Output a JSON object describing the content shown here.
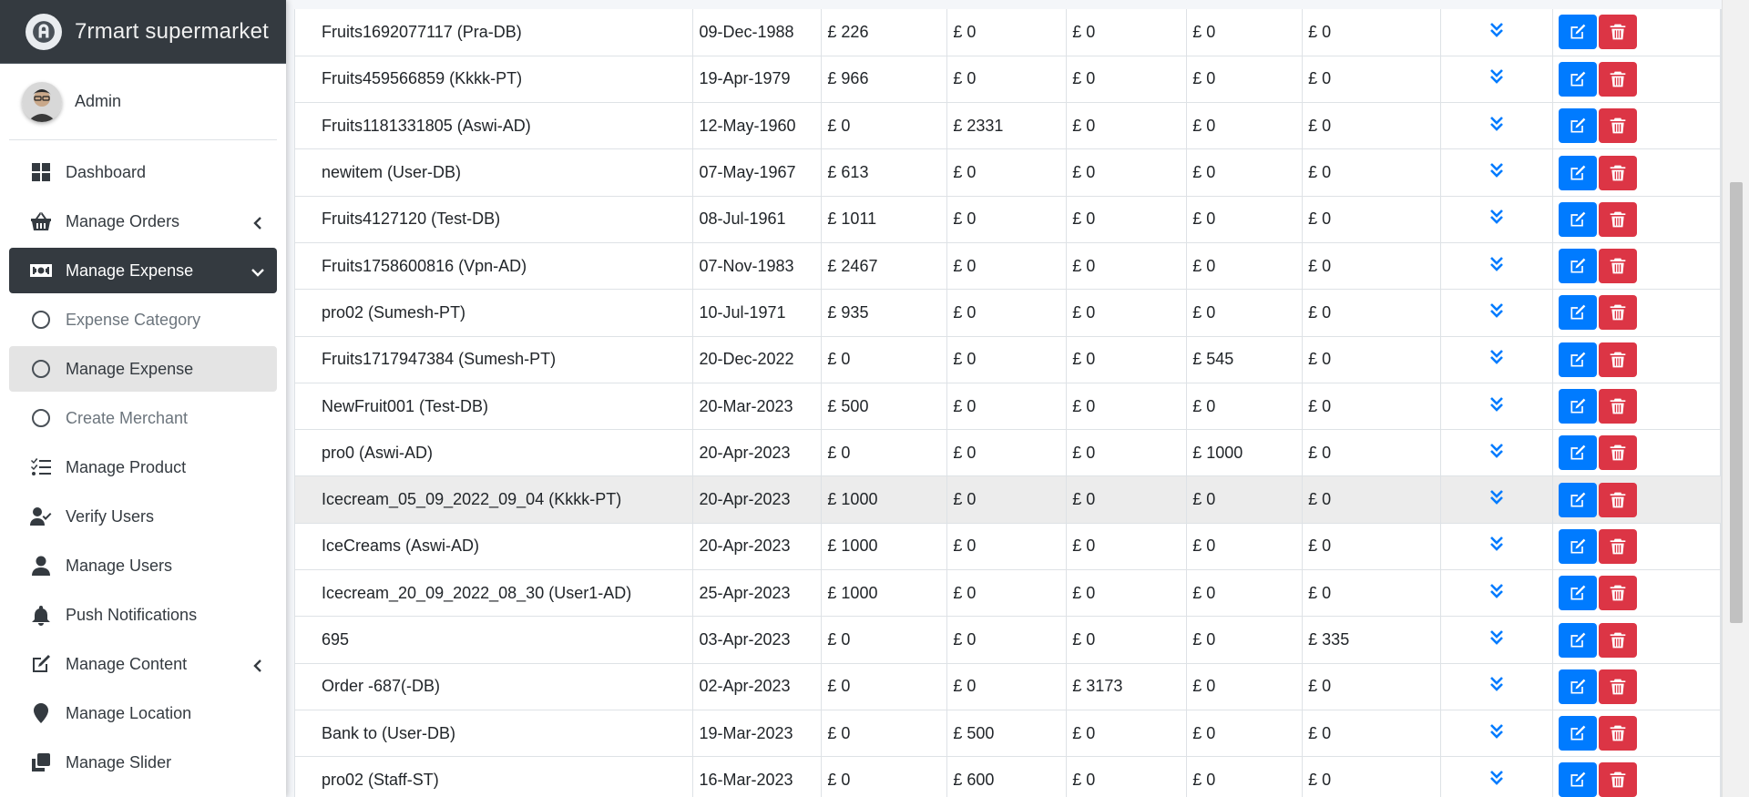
{
  "brand": {
    "title": "7rmart supermarket"
  },
  "user": {
    "name": "Admin"
  },
  "sidebar": {
    "items": [
      {
        "label": "Dashboard",
        "icon": "dashboard-icon"
      },
      {
        "label": "Manage Orders",
        "icon": "basket-icon",
        "chevron": "left"
      },
      {
        "label": "Manage Expense",
        "icon": "money-icon",
        "chevron": "down",
        "active": true
      },
      {
        "label": "Expense Category",
        "icon": "circle-icon",
        "sub": true
      },
      {
        "label": "Manage Expense",
        "icon": "circle-icon",
        "sub": true,
        "current": true
      },
      {
        "label": "Create Merchant",
        "icon": "circle-icon",
        "sub": true
      },
      {
        "label": "Manage Product",
        "icon": "tasks-icon"
      },
      {
        "label": "Verify Users",
        "icon": "user-check-icon"
      },
      {
        "label": "Manage Users",
        "icon": "user-icon"
      },
      {
        "label": "Push Notifications",
        "icon": "bell-icon"
      },
      {
        "label": "Manage Content",
        "icon": "edit-icon",
        "chevron": "left"
      },
      {
        "label": "Manage Location",
        "icon": "map-marker-icon"
      },
      {
        "label": "Manage Slider",
        "icon": "clone-icon"
      }
    ]
  },
  "table": {
    "rows": [
      [
        "Fruits1692077117 (Pra-DB)",
        "09-Dec-1988",
        "£ 226",
        "£ 0",
        "£ 0",
        "£ 0",
        "£ 0"
      ],
      [
        "Fruits459566859 (Kkkk-PT)",
        "19-Apr-1979",
        "£ 966",
        "£ 0",
        "£ 0",
        "£ 0",
        "£ 0"
      ],
      [
        "Fruits1181331805 (Aswi-AD)",
        "12-May-1960",
        "£ 0",
        "£ 2331",
        "£ 0",
        "£ 0",
        "£ 0"
      ],
      [
        "newitem (User-DB)",
        "07-May-1967",
        "£ 613",
        "£ 0",
        "£ 0",
        "£ 0",
        "£ 0"
      ],
      [
        "Fruits4127120 (Test-DB)",
        "08-Jul-1961",
        "£ 1011",
        "£ 0",
        "£ 0",
        "£ 0",
        "£ 0"
      ],
      [
        "Fruits1758600816 (Vpn-AD)",
        "07-Nov-1983",
        "£ 2467",
        "£ 0",
        "£ 0",
        "£ 0",
        "£ 0"
      ],
      [
        "pro02 (Sumesh-PT)",
        "10-Jul-1971",
        "£ 935",
        "£ 0",
        "£ 0",
        "£ 0",
        "£ 0"
      ],
      [
        "Fruits1717947384 (Sumesh-PT)",
        "20-Dec-2022",
        "£ 0",
        "£ 0",
        "£ 0",
        "£ 545",
        "£ 0"
      ],
      [
        "NewFruit001 (Test-DB)",
        "20-Mar-2023",
        "£ 500",
        "£ 0",
        "£ 0",
        "£ 0",
        "£ 0"
      ],
      [
        "pro0 (Aswi-AD)",
        "20-Apr-2023",
        "£ 0",
        "£ 0",
        "£ 0",
        "£ 1000",
        "£ 0"
      ],
      [
        "Icecream_05_09_2022_09_04 (Kkkk-PT)",
        "20-Apr-2023",
        "£ 1000",
        "£ 0",
        "£ 0",
        "£ 0",
        "£ 0"
      ],
      [
        "IceCreams (Aswi-AD)",
        "20-Apr-2023",
        "£ 1000",
        "£ 0",
        "£ 0",
        "£ 0",
        "£ 0"
      ],
      [
        "Icecream_20_09_2022_08_30 (User1-AD)",
        "25-Apr-2023",
        "£ 1000",
        "£ 0",
        "£ 0",
        "£ 0",
        "£ 0"
      ],
      [
        "695",
        "03-Apr-2023",
        "£ 0",
        "£ 0",
        "£ 0",
        "£ 0",
        "£ 335"
      ],
      [
        "Order -687(-DB)",
        "02-Apr-2023",
        "£ 0",
        "£ 0",
        "£ 3173",
        "£ 0",
        "£ 0"
      ],
      [
        "Bank to (User-DB)",
        "19-Mar-2023",
        "£ 0",
        "£ 500",
        "£ 0",
        "£ 0",
        "£ 0"
      ],
      [
        "pro02 (Staff-ST)",
        "16-Mar-2023",
        "£ 0",
        "£ 600",
        "£ 0",
        "£ 0",
        "£ 0"
      ]
    ],
    "hover_row": 10
  },
  "colors": {
    "sidebar_dark": "#343a40",
    "edit_button": "#007bff",
    "delete_button": "#dc3545",
    "chevron": "#007bff"
  }
}
